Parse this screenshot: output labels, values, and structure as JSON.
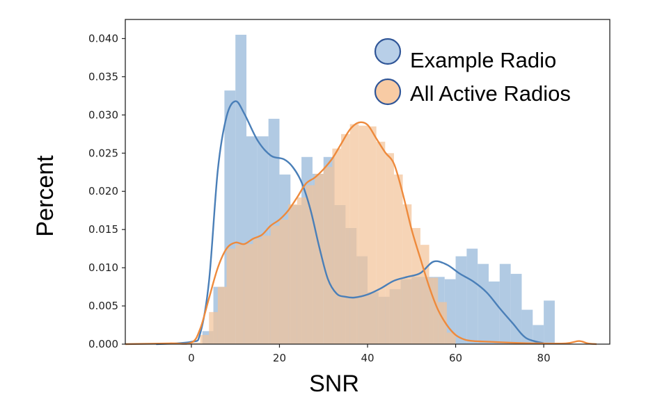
{
  "chart_data": {
    "type": "histogram",
    "title": "",
    "xlabel": "SNR",
    "ylabel": "Percent",
    "xlim": [
      -15,
      95
    ],
    "ylim": [
      0,
      0.0425
    ],
    "xticks": [
      0,
      20,
      40,
      60,
      80
    ],
    "xtick_labels": [
      "0",
      "20",
      "40",
      "60",
      "80"
    ],
    "yticks": [
      0.0,
      0.005,
      0.01,
      0.015,
      0.02,
      0.025,
      0.03,
      0.035,
      0.04
    ],
    "ytick_labels": [
      "0.000",
      "0.005",
      "0.010",
      "0.015",
      "0.020",
      "0.025",
      "0.030",
      "0.035",
      "0.040"
    ],
    "grid": false,
    "legend_position": "top-right",
    "series": [
      {
        "name": "Example Radio",
        "color": "#4a7fb8",
        "bar_color": "#a8c4e0",
        "bin_width": 2.5,
        "hist_x_start": 2.5,
        "hist_values": [
          0.0017,
          0.0075,
          0.0332,
          0.0405,
          0.0272,
          0.0272,
          0.0295,
          0.0222,
          0.0182,
          0.0245,
          0.0223,
          0.0245,
          0.0182,
          0.0152,
          0.0115,
          0.0068,
          0.0062,
          0.0072,
          0.0085,
          0.0088,
          0.0088,
          0.0088,
          0.0085,
          0.0115,
          0.0125,
          0.0105,
          0.0082,
          0.0105,
          0.0092,
          0.0045,
          0.0025,
          0.0057
        ],
        "kde_x": [
          -8,
          0,
          2,
          4,
          6,
          8,
          10,
          12,
          15,
          18,
          21,
          23,
          25,
          27,
          29,
          31,
          33,
          35,
          37,
          40,
          43,
          46,
          49,
          52,
          55,
          58,
          61,
          64,
          67,
          70,
          73,
          76,
          80
        ],
        "kde_y": [
          0.0,
          0.0003,
          0.0014,
          0.0082,
          0.0228,
          0.0298,
          0.0318,
          0.0302,
          0.0267,
          0.0247,
          0.0242,
          0.0232,
          0.0212,
          0.0177,
          0.0128,
          0.0085,
          0.0066,
          0.0062,
          0.0061,
          0.0065,
          0.0073,
          0.0083,
          0.0088,
          0.0093,
          0.0108,
          0.0104,
          0.0092,
          0.0082,
          0.0068,
          0.0047,
          0.0027,
          0.0008,
          0.0001
        ]
      },
      {
        "name": "All Active Radios",
        "color": "#ee8a3c",
        "bar_color": "#f3c49a",
        "bin_width": 2.0,
        "hist_x_start": 0,
        "hist_values": [
          0.0002,
          0.0012,
          0.0042,
          0.0075,
          0.0125,
          0.013,
          0.0131,
          0.0138,
          0.0142,
          0.0155,
          0.0163,
          0.0183,
          0.0192,
          0.0208,
          0.0223,
          0.0232,
          0.0256,
          0.0275,
          0.0288,
          0.0286,
          0.0285,
          0.0265,
          0.025,
          0.0222,
          0.0183,
          0.0152,
          0.013,
          0.0087,
          0.0055,
          0.0015
        ],
        "kde_x": [
          -15,
          -5,
          0,
          2,
          4,
          6,
          8,
          10,
          12,
          14,
          16,
          18,
          20,
          22,
          24,
          26,
          28,
          30,
          32,
          34,
          36,
          38,
          40,
          42,
          44,
          46,
          48,
          50,
          52,
          54,
          56,
          58,
          60,
          62,
          64,
          68,
          72,
          78,
          85,
          88,
          90,
          92
        ],
        "kde_y": [
          0.0,
          0.0001,
          0.0002,
          0.002,
          0.006,
          0.01,
          0.0125,
          0.0133,
          0.0131,
          0.0138,
          0.0143,
          0.0155,
          0.0163,
          0.0175,
          0.0192,
          0.021,
          0.0218,
          0.0229,
          0.0243,
          0.0262,
          0.0281,
          0.029,
          0.0287,
          0.0269,
          0.0251,
          0.0236,
          0.0197,
          0.015,
          0.0112,
          0.0075,
          0.0045,
          0.0025,
          0.0012,
          0.0006,
          0.0004,
          0.0003,
          0.0002,
          0.0001,
          0.0001,
          0.0004,
          0.0001,
          0.0
        ]
      }
    ]
  }
}
